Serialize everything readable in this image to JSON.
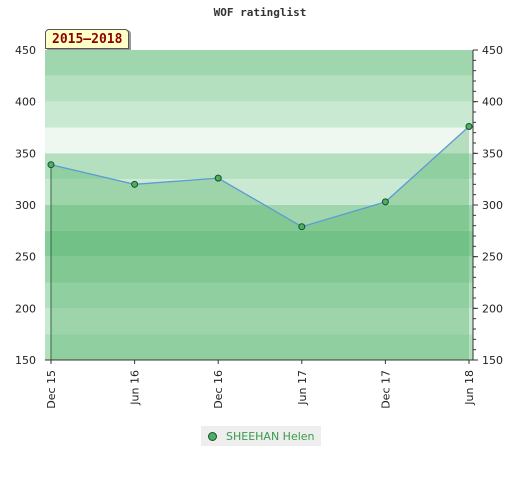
{
  "chart_data": {
    "type": "line",
    "title": "WOF ratinglist",
    "badge": "2015–2018",
    "categories": [
      "Dec 15",
      "Jun 16",
      "Dec 16",
      "Jun 17",
      "Dec 17",
      "Jun 18"
    ],
    "ylim": [
      150,
      450
    ],
    "yticks": [
      150,
      200,
      250,
      300,
      350,
      400,
      450
    ],
    "grid": true,
    "legend_position": "bottom",
    "series": [
      {
        "name": "SHEEHAN Helen",
        "color": "#5b9bd5",
        "marker_color": "#4caf62",
        "values": [
          339,
          320,
          326,
          279,
          303,
          376
        ]
      }
    ]
  }
}
